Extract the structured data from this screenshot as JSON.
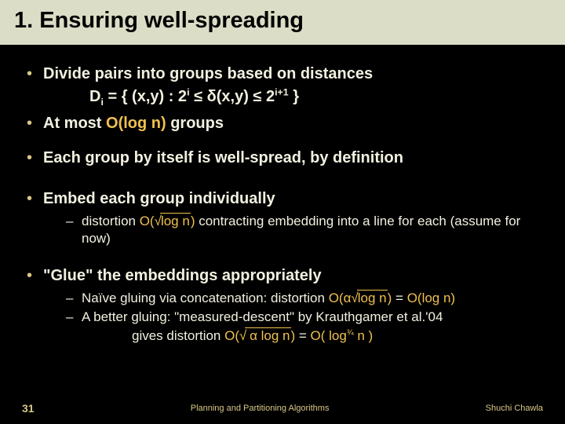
{
  "title": "1. Ensuring well-spreading",
  "bullets": {
    "b1": "Divide pairs into groups based on distances",
    "b2_pre": "At most ",
    "b2_hl": "O(log n)",
    "b2_post": " groups",
    "b3": "Each group by itself is well-spread, by definition",
    "b4": "Embed each group individually",
    "b5": "\"Glue\" the embeddings appropriately"
  },
  "formula": {
    "lhs": "D",
    "sub": "i",
    "mid1": " = { (x,y) : 2",
    "exp1": "i",
    "mid2": " ≤ δ(x,y) ≤ 2",
    "exp2": "i+1",
    "tail": " }"
  },
  "sub4": {
    "pre": "distortion ",
    "o": "O(",
    "inner": "log n",
    "close": ")",
    "post": " contracting embedding into a line for each (assume for now)"
  },
  "sub5a": {
    "pre": "Naïve gluing via concatenation: distortion ",
    "o1": "O(",
    "alpha": "α",
    "inner": "log n",
    "close1": ")",
    "eq": " = ",
    "o2": "O(log n)"
  },
  "sub5b": {
    "line1": "A better gluing: \"measured-descent\" by Krauthgamer et al.'04",
    "line2_pre": "gives distortion ",
    "o": "O(",
    "inner": " α log n",
    "close": ")",
    "eq": "  = ",
    "o2pre": "O( log",
    "o2exp": "¾",
    "o2post": " n )"
  },
  "footer": {
    "page": "31",
    "center": "Planning and Partitioning Algorithms",
    "author": "Shuchi Chawla"
  },
  "colors": {
    "bg_title": "#dcddc6",
    "bg_body": "#000000",
    "text_light": "#f2f0e0",
    "accent": "#d8c888",
    "highlight": "#f0c050"
  }
}
